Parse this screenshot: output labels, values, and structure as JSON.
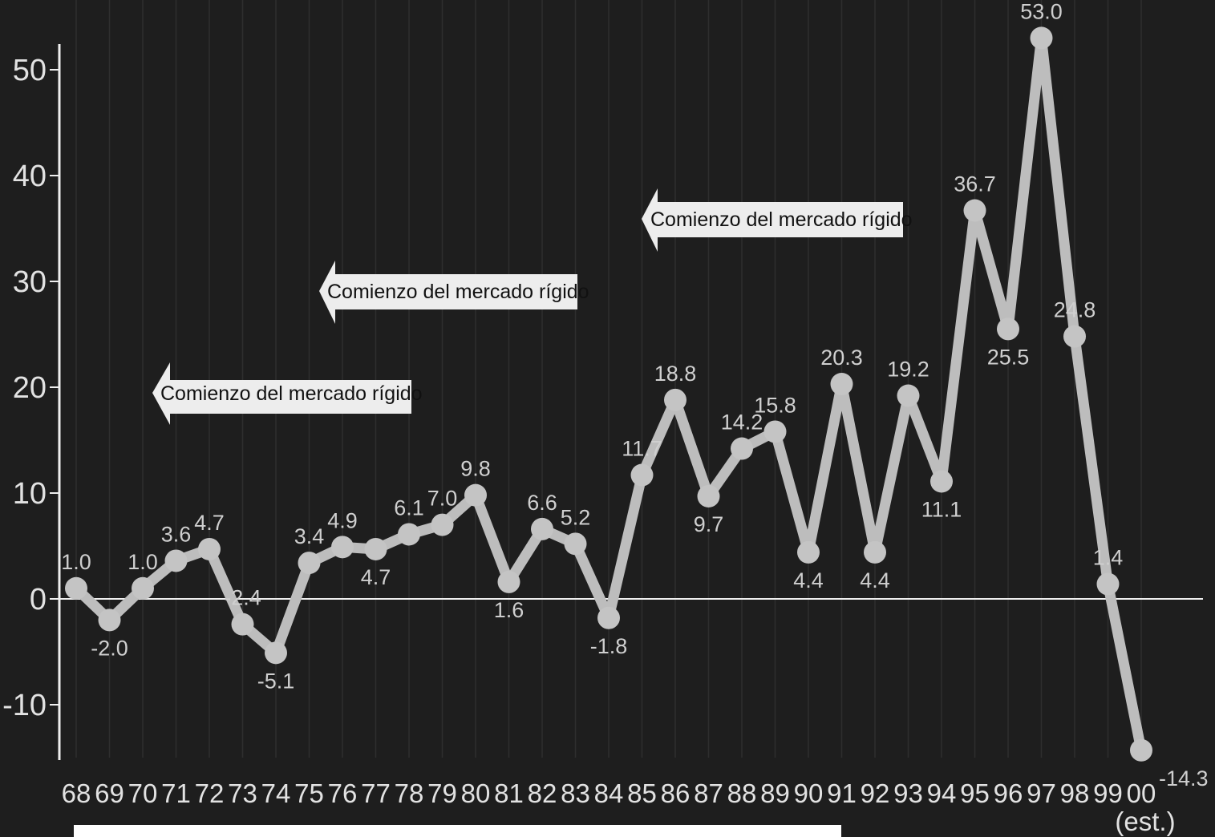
{
  "chart_data": {
    "type": "line",
    "title": "",
    "xlabel": "",
    "ylabel": "",
    "categories": [
      "68",
      "69",
      "70",
      "71",
      "72",
      "73",
      "74",
      "75",
      "76",
      "77",
      "78",
      "79",
      "80",
      "81",
      "82",
      "83",
      "84",
      "85",
      "86",
      "87",
      "88",
      "89",
      "90",
      "91",
      "92",
      "93",
      "94",
      "95",
      "96",
      "97",
      "98",
      "99",
      "00"
    ],
    "x_note": "(est.)",
    "series": [
      {
        "values": [
          1.0,
          -2.0,
          1.0,
          3.6,
          4.7,
          -2.4,
          -5.1,
          3.4,
          4.9,
          4.7,
          6.1,
          7.0,
          9.8,
          1.6,
          6.6,
          5.2,
          -1.8,
          11.7,
          18.8,
          9.7,
          14.2,
          15.8,
          4.4,
          20.3,
          4.4,
          19.2,
          11.1,
          36.7,
          25.5,
          53.0,
          24.8,
          1.4,
          -14.3
        ],
        "labels": [
          "1.0",
          "-2.0",
          "1.0",
          "3.6",
          "4.7",
          "-2.4",
          "-5.1",
          "3.4",
          "4.9",
          "4.7",
          "6.1",
          "7.0",
          "9.8",
          "1.6",
          "6.6",
          "5.2",
          "-1.8",
          "11.7",
          "18.8",
          "9.7",
          "14.2",
          "15.8",
          "4.4",
          "20.3",
          "4.4",
          "19.2",
          "11.1",
          "36.7",
          "25.5",
          "53.0",
          "24.8",
          "1.4",
          "-14.3"
        ]
      }
    ],
    "yticks": [
      "50",
      "40",
      "30",
      "20",
      "10",
      "0",
      "-10"
    ],
    "ylim": [
      -15,
      53
    ],
    "grid": "vertical",
    "annotations": [
      {
        "text": "Comienzo del mercado rígido"
      },
      {
        "text": "Comienzo del mercado rígido"
      },
      {
        "text": "Comienzo del mercado rígido"
      }
    ],
    "colors": {
      "background": "#1e1e1e",
      "line": "#bdbdbd",
      "text": "#dcdcdc"
    }
  }
}
